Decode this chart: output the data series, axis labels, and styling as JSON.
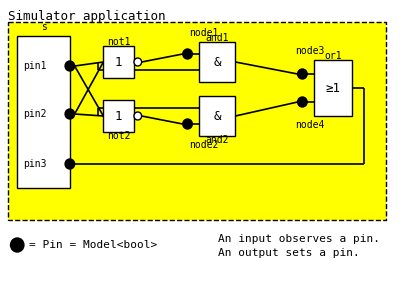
{
  "title": "Simulator application",
  "bg_color": "#FFFF00",
  "outer_bg": "#FFFFFF",
  "s_label": "s",
  "not1_label": "not1",
  "not2_label": "not2",
  "node1_label": "node1",
  "node2_label": "node2",
  "node3_label": "node3",
  "node4_label": "node4",
  "and1_label": "and1",
  "and2_label": "and2",
  "or1_label": "or1",
  "pin1_label": "pin1",
  "pin2_label": "pin2",
  "pin3_label": "pin3",
  "gate_symbol_not": "1",
  "gate_symbol_and": "&",
  "gate_symbol_or": "≥1",
  "legend_text1": "= Pin = Model<bool>",
  "legend_line1": "An input observes a pin.",
  "legend_line2": "An output sets a pin."
}
